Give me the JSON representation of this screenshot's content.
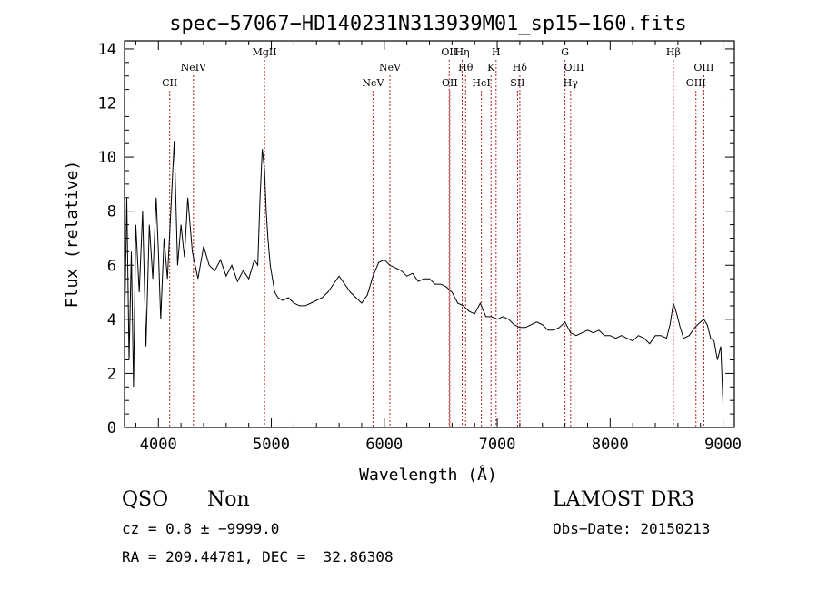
{
  "chart_data": {
    "type": "line",
    "title": "spec−57067−HD140231N313939M01_sp15−160.fits",
    "xlabel": "Wavelength (Å)",
    "ylabel": "Flux (relative)",
    "xlim": [
      3700,
      9100
    ],
    "ylim": [
      0,
      14.3
    ],
    "x_ticks": [
      4000,
      5000,
      6000,
      7000,
      8000,
      9000
    ],
    "y_ticks": [
      0,
      2,
      4,
      6,
      8,
      10,
      12,
      14
    ],
    "grid": false,
    "line_color": "#000000",
    "marker_color": "#b22222",
    "series": [
      {
        "x": [
          3700,
          3720,
          3740,
          3760,
          3780,
          3800,
          3830,
          3860,
          3890,
          3920,
          3950,
          3980,
          4000,
          4020,
          4050,
          4080,
          4110,
          4140,
          4170,
          4200,
          4230,
          4260,
          4300,
          4350,
          4400,
          4450,
          4500,
          4550,
          4600,
          4650,
          4700,
          4750,
          4800,
          4850,
          4880,
          4900,
          4920,
          4940,
          4955,
          4970,
          4990,
          5010,
          5030,
          5060,
          5100,
          5150,
          5200,
          5250,
          5300,
          5350,
          5400,
          5450,
          5500,
          5550,
          5600,
          5650,
          5700,
          5750,
          5800,
          5850,
          5900,
          5950,
          6000,
          6050,
          6100,
          6150,
          6200,
          6250,
          6300,
          6350,
          6400,
          6450,
          6500,
          6550,
          6600,
          6650,
          6700,
          6750,
          6800,
          6850,
          6900,
          6950,
          7000,
          7050,
          7100,
          7150,
          7200,
          7250,
          7300,
          7350,
          7400,
          7450,
          7500,
          7550,
          7600,
          7650,
          7700,
          7750,
          7800,
          7850,
          7900,
          7950,
          8000,
          8050,
          8100,
          8150,
          8200,
          8250,
          8300,
          8350,
          8400,
          8450,
          8500,
          8530,
          8560,
          8590,
          8620,
          8650,
          8700,
          8750,
          8800,
          8830,
          8860,
          8890,
          8920,
          8950,
          8980,
          9000
        ],
        "y": [
          3.5,
          8.5,
          2.5,
          6.5,
          1.5,
          7.5,
          5.0,
          8.0,
          3.0,
          7.5,
          5.5,
          8.5,
          6.5,
          4.0,
          7.0,
          5.5,
          8.0,
          10.6,
          6.0,
          7.5,
          6.3,
          8.5,
          6.5,
          5.5,
          6.7,
          6.0,
          5.8,
          6.2,
          5.6,
          6.0,
          5.4,
          5.8,
          5.5,
          6.2,
          6.0,
          8.5,
          10.3,
          9.5,
          8.0,
          7.0,
          6.0,
          5.5,
          5.0,
          4.8,
          4.7,
          4.8,
          4.6,
          4.5,
          4.5,
          4.6,
          4.7,
          4.8,
          5.0,
          5.3,
          5.6,
          5.3,
          5.0,
          4.8,
          4.6,
          4.9,
          5.6,
          6.1,
          6.2,
          6.0,
          5.9,
          5.8,
          5.6,
          5.7,
          5.4,
          5.5,
          5.5,
          5.3,
          5.3,
          5.2,
          5.0,
          4.6,
          4.5,
          4.3,
          4.2,
          4.6,
          4.1,
          4.1,
          4.0,
          4.1,
          4.0,
          3.8,
          3.7,
          3.7,
          3.8,
          3.9,
          3.8,
          3.6,
          3.6,
          3.7,
          3.9,
          3.5,
          3.4,
          3.5,
          3.6,
          3.5,
          3.6,
          3.4,
          3.4,
          3.3,
          3.4,
          3.3,
          3.2,
          3.4,
          3.3,
          3.1,
          3.4,
          3.4,
          3.3,
          3.8,
          4.6,
          4.2,
          3.7,
          3.3,
          3.4,
          3.7,
          3.9,
          4.0,
          3.8,
          3.3,
          3.2,
          2.5,
          3.0,
          0.8
        ]
      }
    ],
    "line_markers": [
      {
        "label": "CII",
        "x": 4100,
        "level": 3
      },
      {
        "label": "NeIV",
        "x": 4310,
        "level": 2
      },
      {
        "label": "MgII",
        "x": 4940,
        "level": 1
      },
      {
        "label": "NeV",
        "x": 5900,
        "level": 3
      },
      {
        "label": "NeV",
        "x": 6050,
        "level": 2
      },
      {
        "label": "OII",
        "x": 6575,
        "level": 1
      },
      {
        "label": "OII",
        "x": 6580,
        "level": 3
      },
      {
        "label": "Hη",
        "x": 6690,
        "level": 1
      },
      {
        "label": "Hθ",
        "x": 6720,
        "level": 2
      },
      {
        "label": "HeI",
        "x": 6860,
        "level": 3
      },
      {
        "label": "K",
        "x": 6945,
        "level": 2
      },
      {
        "label": "H",
        "x": 6990,
        "level": 1
      },
      {
        "label": "Hδ",
        "x": 7200,
        "level": 2
      },
      {
        "label": "SII",
        "x": 7180,
        "level": 3
      },
      {
        "label": "G",
        "x": 7600,
        "level": 1
      },
      {
        "label": "OIII",
        "x": 7680,
        "level": 2
      },
      {
        "label": "Hγ",
        "x": 7650,
        "level": 3
      },
      {
        "label": "Hβ",
        "x": 8560,
        "level": 1
      },
      {
        "label": "OIII",
        "x": 8830,
        "level": 2
      },
      {
        "label": "OIII",
        "x": 8760,
        "level": 3
      }
    ]
  },
  "info": {
    "class": "QSO",
    "subclass": "Non",
    "survey": "LAMOST DR3",
    "cz": "cz = 0.8 ± −9999.0",
    "obs_date": "Obs−Date: 20150213",
    "coords": "RA = 209.44781, DEC =  32.86308"
  }
}
